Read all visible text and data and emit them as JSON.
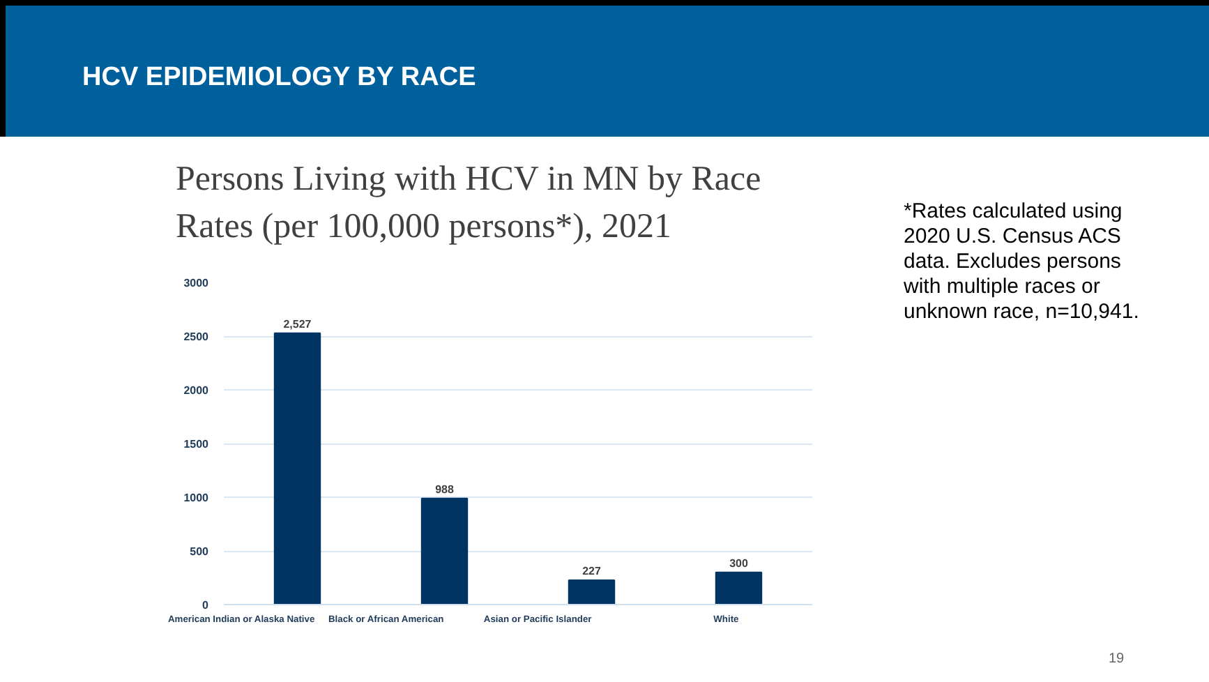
{
  "chart_data": {
    "type": "bar",
    "title": "HCV EPIDEMIOLOGY BY RACE",
    "subtitle": "Persons Living with HCV in MN by Race\nRates (per 100,000 persons*), 2021",
    "categories": [
      "American Indian or Alaska Native",
      "Black or African American",
      "Asian or Pacific Islander",
      "White"
    ],
    "values": [
      2527,
      988,
      227,
      300
    ],
    "value_labels": [
      "2,527",
      "988",
      "227",
      "300"
    ],
    "color": "#003462",
    "ylim": [
      0,
      3000
    ],
    "yticks": [
      0,
      500,
      1000,
      1500,
      2000,
      2500,
      3000
    ],
    "grid": "y",
    "annotations": [
      "*Rates calculated using 2020 U.S. Census ACS data. Excludes persons with multiple races or unknown race, n=10,941.",
      "19"
    ]
  }
}
